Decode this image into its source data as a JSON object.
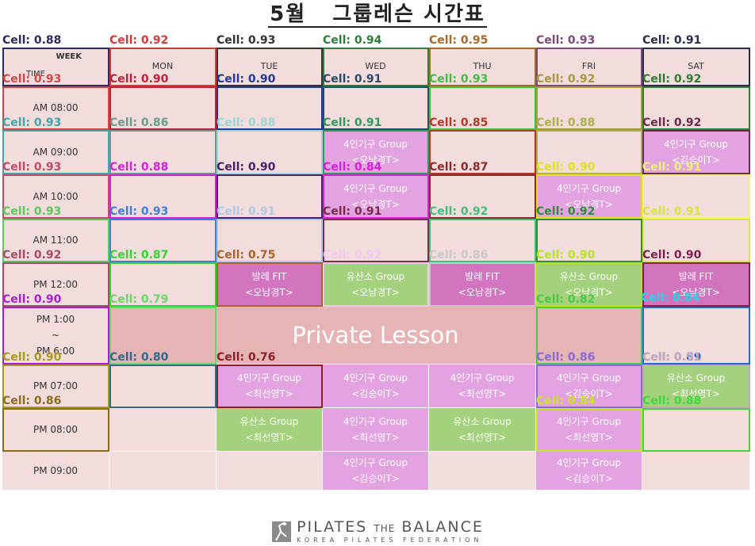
{
  "title": "5월   그룹레슨 시간표",
  "header": {
    "week_label": "WEEK",
    "time_label": "TIME",
    "days": [
      "MON",
      "TUE",
      "WED",
      "THU",
      "FRI",
      "SAT"
    ]
  },
  "times": [
    "AM  08:00",
    "AM  09:00",
    "AM  10:00",
    "AM  11:00",
    "PM  12:00",
    "PM  1:00\n~\nPM  6:00",
    "PM  07:00",
    "PM  08:00",
    "PM  09:00"
  ],
  "lessons": [
    {
      "row": 1,
      "col": 2,
      "type": "pink",
      "name": "4인기구 Group",
      "teacher": "<오남경T>"
    },
    {
      "row": 1,
      "col": 5,
      "type": "pink",
      "name": "4인기구 Group",
      "teacher": "<김승이T>"
    },
    {
      "row": 2,
      "col": 2,
      "type": "pink",
      "name": "4인기구 Group",
      "teacher": "<오남경T>"
    },
    {
      "row": 2,
      "col": 4,
      "type": "pink",
      "name": "4인기구 Group",
      "teacher": "<오남경T>"
    },
    {
      "row": 4,
      "col": 1,
      "type": "mag",
      "name": "발레 FIT",
      "teacher": "<오남경T>"
    },
    {
      "row": 4,
      "col": 2,
      "type": "green",
      "name": "유산소 Group",
      "teacher": "<오남경T>"
    },
    {
      "row": 4,
      "col": 3,
      "type": "mag",
      "name": "발레 FIT",
      "teacher": "<오남경T>"
    },
    {
      "row": 4,
      "col": 4,
      "type": "green",
      "name": "유산소 Group",
      "teacher": "<오남경T>"
    },
    {
      "row": 4,
      "col": 5,
      "type": "mag",
      "name": "발레 FIT",
      "teacher": "<오남경T>"
    },
    {
      "row": 6,
      "col": 1,
      "type": "pink",
      "name": "4인기구 Group",
      "teacher": "<최선영T>"
    },
    {
      "row": 6,
      "col": 2,
      "type": "pink",
      "name": "4인기구 Group",
      "teacher": "<김승이T>"
    },
    {
      "row": 6,
      "col": 3,
      "type": "pink",
      "name": "4인기구 Group",
      "teacher": "<최선영T>"
    },
    {
      "row": 6,
      "col": 4,
      "type": "pink",
      "name": "4인기구 Group",
      "teacher": "<김승이T>"
    },
    {
      "row": 6,
      "col": 5,
      "type": "green",
      "name": "유산소 Group",
      "teacher": "<최선영T>"
    },
    {
      "row": 7,
      "col": 1,
      "type": "green",
      "name": "유산소 Group",
      "teacher": "<최선영T>"
    },
    {
      "row": 7,
      "col": 2,
      "type": "pink",
      "name": "4인기구 Group",
      "teacher": "<최선영T>"
    },
    {
      "row": 7,
      "col": 3,
      "type": "green",
      "name": "유산소 Group",
      "teacher": "<최선영T>"
    },
    {
      "row": 7,
      "col": 4,
      "type": "pink",
      "name": "4인기구 Group",
      "teacher": "<최선영T>"
    },
    {
      "row": 8,
      "col": 2,
      "type": "pink",
      "name": "4인기구 Group",
      "teacher": "<김승이T>"
    },
    {
      "row": 8,
      "col": 4,
      "type": "pink",
      "name": "4인기구 Group",
      "teacher": "<김승이T>"
    }
  ],
  "private_lesson": "Private  Lesson",
  "cell_prefix": "Cell: ",
  "cell_scores": [
    {
      "anchor": "H0",
      "v": "0.88",
      "c": "#2b2b5c"
    },
    {
      "anchor": "H1",
      "v": "0.92",
      "c": "#d33a3a"
    },
    {
      "anchor": "H2",
      "v": "0.93",
      "c": "#333333"
    },
    {
      "anchor": "H3",
      "v": "0.94",
      "c": "#2e7d3a"
    },
    {
      "anchor": "H4",
      "v": "0.95",
      "c": "#a86a2a"
    },
    {
      "anchor": "H5",
      "v": "0.93",
      "c": "#7b4a7b"
    },
    {
      "anchor": "H6",
      "v": "0.91",
      "c": "#2b2b4a"
    },
    {
      "anchor": "0-0",
      "v": "0.93",
      "c": "#d64545"
    },
    {
      "anchor": "0-1",
      "v": "0.90",
      "c": "#c21f3a"
    },
    {
      "anchor": "0-2",
      "v": "0.90",
      "c": "#1f3a9a"
    },
    {
      "anchor": "0-3",
      "v": "0.91",
      "c": "#2a4a6a"
    },
    {
      "anchor": "0-4",
      "v": "0.93",
      "c": "#3fbf3f"
    },
    {
      "anchor": "0-5",
      "v": "0.92",
      "c": "#a89a3a"
    },
    {
      "anchor": "0-6",
      "v": "0.92",
      "c": "#2e7d2e"
    },
    {
      "anchor": "1-0",
      "v": "0.93",
      "c": "#3fa6a6"
    },
    {
      "anchor": "1-1",
      "v": "0.86",
      "c": "#6a9a8a"
    },
    {
      "anchor": "1-2",
      "v": "0.88",
      "c": "#9ad6d6"
    },
    {
      "anchor": "1-3",
      "v": "0.91",
      "c": "#2f9a5a"
    },
    {
      "anchor": "1-4",
      "v": "0.85",
      "c": "#b33a2a"
    },
    {
      "anchor": "1-5",
      "v": "0.88",
      "c": "#aab04a"
    },
    {
      "anchor": "1-6",
      "v": "0.92",
      "c": "#6a2a4a"
    },
    {
      "anchor": "2-0",
      "v": "0.93",
      "c": "#c24a6a"
    },
    {
      "anchor": "2-1",
      "v": "0.88",
      "c": "#d81fd8"
    },
    {
      "anchor": "2-2",
      "v": "0.90",
      "c": "#4a1f6a"
    },
    {
      "anchor": "2-3",
      "v": "0.84",
      "c": "#d81fd8"
    },
    {
      "anchor": "2-4",
      "v": "0.87",
      "c": "#8a2a2a"
    },
    {
      "anchor": "2-5",
      "v": "0.90",
      "c": "#e0e01f"
    },
    {
      "anchor": "2-6",
      "v": "0.91",
      "c": "#f0f07a"
    },
    {
      "anchor": "3-0",
      "v": "0.93",
      "c": "#5ac85a"
    },
    {
      "anchor": "3-1",
      "v": "0.93",
      "c": "#3f7fd6"
    },
    {
      "anchor": "3-2",
      "v": "0.91",
      "c": "#b0c8e8"
    },
    {
      "anchor": "3-3",
      "v": "0.91",
      "c": "#7a2a4a"
    },
    {
      "anchor": "3-4",
      "v": "0.92",
      "c": "#3fbf7a"
    },
    {
      "anchor": "3-5",
      "v": "0.92",
      "c": "#2f8a3a"
    },
    {
      "anchor": "3-6",
      "v": "0.91",
      "c": "#d6e63f"
    },
    {
      "anchor": "4-0",
      "v": "0.92",
      "c": "#a64a6a"
    },
    {
      "anchor": "4-1",
      "v": "0.87",
      "c": "#2fd62f"
    },
    {
      "anchor": "4-2",
      "v": "0.75",
      "c": "#a8642a"
    },
    {
      "anchor": "4-3",
      "v": "0.92",
      "c": "#f0c8f0"
    },
    {
      "anchor": "4-4",
      "v": "0.86",
      "c": "#c8c8c8"
    },
    {
      "anchor": "4-5",
      "v": "0.90",
      "c": "#b4e61f"
    },
    {
      "anchor": "4-6",
      "v": "0.90",
      "c": "#7a1f4a"
    },
    {
      "anchor": "5-0",
      "v": "0.90",
      "c": "#a61fd6"
    },
    {
      "anchor": "5-1",
      "v": "0.79",
      "c": "#6ad66a"
    },
    {
      "anchor": "5-5",
      "v": "0.82",
      "c": "#4ac84a"
    },
    {
      "anchor": "5-6",
      "v": "0.84",
      "c": "#1fd6e6"
    },
    {
      "anchor": "5-6b",
      "v": "0.89",
      "c": "#1f6ad6"
    },
    {
      "anchor": "6-0",
      "v": "0.90",
      "c": "#a69a1f"
    },
    {
      "anchor": "6-1",
      "v": "0.80",
      "c": "#2f6a8a"
    },
    {
      "anchor": "6-2",
      "v": "0.76",
      "c": "#8a1f2a"
    },
    {
      "anchor": "6-5",
      "v": "0.86",
      "c": "#8a6ad6"
    },
    {
      "anchor": "6-6",
      "v": "0.91",
      "c": "#c8a8b8"
    },
    {
      "anchor": "7-0",
      "v": "0.86",
      "c": "#8a6a1f"
    },
    {
      "anchor": "7-5",
      "v": "0.84",
      "c": "#c8e61f"
    },
    {
      "anchor": "7-6",
      "v": "0.88",
      "c": "#3fd63f"
    }
  ],
  "footer": {
    "brand_main": "PILATES",
    "brand_the": "THE",
    "brand_balance": "BALANCE",
    "brand_sub": "KOREA PILATES FEDERATION",
    "icon": "pilates-figure-icon"
  }
}
